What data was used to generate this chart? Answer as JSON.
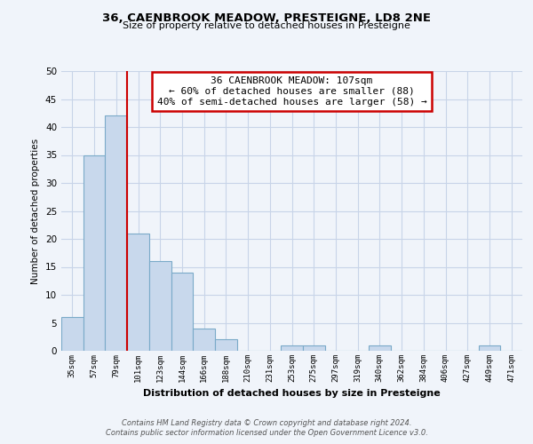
{
  "title": "36, CAENBROOK MEADOW, PRESTEIGNE, LD8 2NE",
  "subtitle": "Size of property relative to detached houses in Presteigne",
  "xlabel": "Distribution of detached houses by size in Presteigne",
  "ylabel": "Number of detached properties",
  "bar_labels": [
    "35sqm",
    "57sqm",
    "79sqm",
    "101sqm",
    "123sqm",
    "144sqm",
    "166sqm",
    "188sqm",
    "210sqm",
    "231sqm",
    "253sqm",
    "275sqm",
    "297sqm",
    "319sqm",
    "340sqm",
    "362sqm",
    "384sqm",
    "406sqm",
    "427sqm",
    "449sqm",
    "471sqm"
  ],
  "bar_values": [
    6,
    35,
    42,
    21,
    16,
    14,
    4,
    2,
    0,
    0,
    1,
    1,
    0,
    0,
    1,
    0,
    0,
    0,
    0,
    1,
    0
  ],
  "bar_color": "#c8d8ec",
  "bar_edge_color": "#7aaac8",
  "ylim": [
    0,
    50
  ],
  "yticks": [
    0,
    5,
    10,
    15,
    20,
    25,
    30,
    35,
    40,
    45,
    50
  ],
  "property_line_index": 2,
  "property_line_color": "#cc0000",
  "annotation_title": "36 CAENBROOK MEADOW: 107sqm",
  "annotation_line1": "← 60% of detached houses are smaller (88)",
  "annotation_line2": "40% of semi-detached houses are larger (58) →",
  "annotation_box_color": "#ffffff",
  "annotation_box_edge": "#cc0000",
  "footer_line1": "Contains HM Land Registry data © Crown copyright and database right 2024.",
  "footer_line2": "Contains public sector information licensed under the Open Government Licence v3.0.",
  "bg_color": "#f0f4fa",
  "grid_color": "#c8d4e8"
}
